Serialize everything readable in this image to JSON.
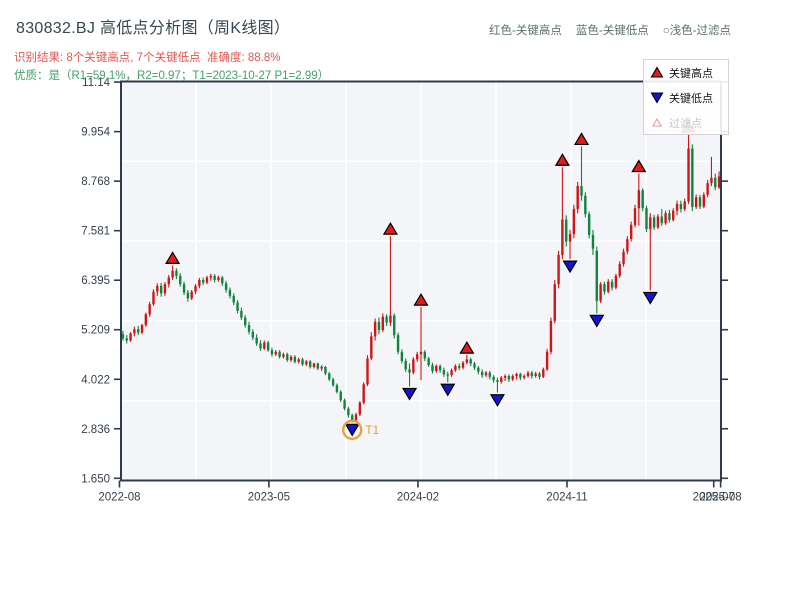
{
  "header": {
    "title": "830832.BJ 高低点分析图（周K线图）",
    "result_line": "识别结果: 8个关键高点, 7个关键低点  准确度: 88.8%",
    "quality_line": "优质：是（R1=59.1%，R2=0.97；T1=2023-10-27 P1=2.99）",
    "legend_top": {
      "high": "红色-关键高点",
      "low": "蓝色-关键低点",
      "filter": "○浅色-过滤点"
    }
  },
  "legend_box": {
    "items": [
      {
        "label": "关键高点",
        "marker": "red-up-triangle-icon"
      },
      {
        "label": "关键低点",
        "marker": "blue-down-triangle-icon"
      },
      {
        "label": "过滤点",
        "marker": "light-open-triangle-icon"
      }
    ]
  },
  "colors": {
    "candle_up": "#CE1616",
    "candle_down": "#12833D",
    "marker_high": "#E11A1A",
    "marker_low": "#1414CF",
    "marker_edge": "#000000",
    "annotation_orange": "#E8A23B",
    "plot_bg": "#F3F5F8",
    "grid": "#FFFFFF",
    "spine": "#2F3A4D",
    "tick_label": "#37404A",
    "filter_marker_edge": "#E89C9C"
  },
  "chart_data": {
    "type": "candlestick",
    "timeframe": "weekly",
    "title": "830832.BJ 高低点分析图（周K线图）",
    "ylim": [
      1.597,
      11.155
    ],
    "grid": "on",
    "y_ticks": [
      {
        "label": "11.14",
        "value": 11.141
      },
      {
        "label": "9.954",
        "value": 9.954
      },
      {
        "label": "8.768",
        "value": 8.768
      },
      {
        "label": "7.581",
        "value": 7.581
      },
      {
        "label": "6.395",
        "value": 6.395
      },
      {
        "label": "5.209",
        "value": 5.209
      },
      {
        "label": "4.022",
        "value": 4.022
      },
      {
        "label": "2.836",
        "value": 2.836
      },
      {
        "label": "1.650",
        "value": 1.65
      }
    ],
    "x_ticks": [
      {
        "label": "2022-08",
        "i": -0.9
      },
      {
        "label": "2023-05",
        "i": 38.2
      },
      {
        "label": "2024-02",
        "i": 77.2
      },
      {
        "label": "2024-11",
        "i": 116.2
      },
      {
        "label": "2025-07",
        "i": 154.6
      },
      {
        "label": "2025-08",
        "i": 156.4
      }
    ],
    "candles": [
      [
        5.1,
        5.18,
        4.95,
        5.0
      ],
      [
        5.0,
        5.08,
        4.88,
        4.95
      ],
      [
        4.95,
        5.15,
        4.92,
        5.12
      ],
      [
        5.12,
        5.28,
        5.05,
        5.22
      ],
      [
        5.22,
        5.3,
        5.08,
        5.14
      ],
      [
        5.14,
        5.35,
        5.1,
        5.32
      ],
      [
        5.32,
        5.62,
        5.28,
        5.58
      ],
      [
        5.58,
        5.88,
        5.52,
        5.82
      ],
      [
        5.82,
        6.18,
        5.78,
        6.12
      ],
      [
        6.12,
        6.32,
        6.02,
        6.26
      ],
      [
        6.26,
        6.33,
        6.0,
        6.08
      ],
      [
        6.08,
        6.35,
        6.02,
        6.3
      ],
      [
        6.3,
        6.52,
        6.22,
        6.46
      ],
      [
        6.46,
        6.75,
        6.4,
        6.62
      ],
      [
        6.62,
        6.68,
        6.42,
        6.5
      ],
      [
        6.5,
        6.56,
        6.24,
        6.3
      ],
      [
        6.3,
        6.36,
        6.04,
        6.1
      ],
      [
        6.1,
        6.16,
        5.88,
        5.96
      ],
      [
        5.96,
        6.16,
        5.92,
        6.12
      ],
      [
        6.12,
        6.3,
        6.06,
        6.26
      ],
      [
        6.26,
        6.45,
        6.2,
        6.4
      ],
      [
        6.4,
        6.46,
        6.28,
        6.34
      ],
      [
        6.34,
        6.5,
        6.3,
        6.46
      ],
      [
        6.46,
        6.55,
        6.38,
        6.5
      ],
      [
        6.5,
        6.54,
        6.34,
        6.4
      ],
      [
        6.4,
        6.5,
        6.36,
        6.46
      ],
      [
        6.46,
        6.5,
        6.26,
        6.32
      ],
      [
        6.32,
        6.38,
        6.1,
        6.16
      ],
      [
        6.16,
        6.22,
        5.96,
        6.02
      ],
      [
        6.02,
        6.08,
        5.8,
        5.86
      ],
      [
        5.86,
        5.92,
        5.6,
        5.66
      ],
      [
        5.66,
        5.74,
        5.44,
        5.5
      ],
      [
        5.5,
        5.56,
        5.26,
        5.32
      ],
      [
        5.32,
        5.4,
        5.1,
        5.16
      ],
      [
        5.16,
        5.22,
        4.96,
        5.02
      ],
      [
        5.02,
        5.1,
        4.82,
        4.88
      ],
      [
        4.88,
        4.96,
        4.7,
        4.76
      ],
      [
        4.76,
        4.95,
        4.72,
        4.9
      ],
      [
        4.9,
        4.94,
        4.68,
        4.72
      ],
      [
        4.72,
        4.78,
        4.56,
        4.62
      ],
      [
        4.62,
        4.72,
        4.58,
        4.68
      ],
      [
        4.68,
        4.72,
        4.52,
        4.56
      ],
      [
        4.56,
        4.66,
        4.52,
        4.62
      ],
      [
        4.62,
        4.66,
        4.44,
        4.48
      ],
      [
        4.48,
        4.6,
        4.44,
        4.56
      ],
      [
        4.56,
        4.6,
        4.4,
        4.44
      ],
      [
        4.44,
        4.54,
        4.4,
        4.5
      ],
      [
        4.5,
        4.54,
        4.34,
        4.38
      ],
      [
        4.38,
        4.48,
        4.34,
        4.45
      ],
      [
        4.45,
        4.48,
        4.28,
        4.32
      ],
      [
        4.32,
        4.42,
        4.28,
        4.4
      ],
      [
        4.4,
        4.42,
        4.24,
        4.28
      ],
      [
        4.28,
        4.36,
        4.22,
        4.32
      ],
      [
        4.32,
        4.34,
        4.12,
        4.16
      ],
      [
        4.16,
        4.2,
        3.98,
        4.02
      ],
      [
        4.02,
        4.06,
        3.84,
        3.88
      ],
      [
        3.88,
        3.92,
        3.68,
        3.72
      ],
      [
        3.72,
        3.76,
        3.48,
        3.52
      ],
      [
        3.52,
        3.56,
        3.28,
        3.32
      ],
      [
        3.32,
        3.36,
        3.1,
        3.16
      ],
      [
        3.16,
        3.2,
        2.99,
        3.04
      ],
      [
        3.04,
        3.22,
        3.0,
        3.18
      ],
      [
        3.18,
        3.5,
        3.14,
        3.46
      ],
      [
        3.46,
        3.95,
        3.42,
        3.9
      ],
      [
        3.9,
        4.6,
        3.86,
        4.52
      ],
      [
        4.52,
        5.15,
        4.48,
        5.05
      ],
      [
        5.05,
        5.48,
        4.95,
        5.4
      ],
      [
        5.4,
        5.5,
        5.1,
        5.2
      ],
      [
        5.2,
        5.6,
        5.15,
        5.52
      ],
      [
        5.52,
        5.58,
        5.3,
        5.38
      ],
      [
        5.38,
        7.45,
        5.3,
        5.55
      ],
      [
        5.55,
        5.6,
        5.0,
        5.08
      ],
      [
        5.08,
        5.14,
        4.62,
        4.68
      ],
      [
        4.68,
        4.74,
        4.4,
        4.46
      ],
      [
        4.46,
        4.52,
        4.2,
        4.26
      ],
      [
        4.26,
        4.4,
        3.85,
        4.18
      ],
      [
        4.18,
        4.55,
        4.14,
        4.5
      ],
      [
        4.5,
        4.68,
        4.44,
        4.62
      ],
      [
        4.62,
        5.75,
        4.0,
        4.68
      ],
      [
        4.68,
        4.72,
        4.46,
        4.52
      ],
      [
        4.52,
        4.56,
        4.32,
        4.36
      ],
      [
        4.36,
        4.42,
        4.16,
        4.22
      ],
      [
        4.22,
        4.38,
        4.18,
        4.34
      ],
      [
        4.34,
        4.38,
        4.18,
        4.24
      ],
      [
        4.24,
        4.3,
        4.08,
        4.14
      ],
      [
        4.14,
        4.2,
        3.95,
        4.12
      ],
      [
        4.12,
        4.28,
        4.08,
        4.24
      ],
      [
        4.24,
        4.38,
        4.2,
        4.34
      ],
      [
        4.34,
        4.4,
        4.24,
        4.3
      ],
      [
        4.3,
        4.46,
        4.26,
        4.42
      ],
      [
        4.42,
        4.6,
        4.38,
        4.5
      ],
      [
        4.5,
        4.54,
        4.34,
        4.4
      ],
      [
        4.4,
        4.44,
        4.24,
        4.3
      ],
      [
        4.3,
        4.34,
        4.14,
        4.2
      ],
      [
        4.2,
        4.26,
        4.06,
        4.12
      ],
      [
        4.12,
        4.22,
        4.08,
        4.18
      ],
      [
        4.18,
        4.22,
        4.02,
        4.08
      ],
      [
        4.08,
        4.12,
        3.94,
        4.0
      ],
      [
        4.0,
        4.06,
        3.7,
        3.96
      ],
      [
        3.96,
        4.1,
        3.92,
        4.06
      ],
      [
        4.06,
        4.14,
        3.98,
        4.1
      ],
      [
        4.1,
        4.14,
        3.96,
        4.02
      ],
      [
        4.02,
        4.14,
        3.98,
        4.1
      ],
      [
        4.1,
        4.18,
        4.02,
        4.15
      ],
      [
        4.15,
        4.18,
        4.0,
        4.06
      ],
      [
        4.06,
        4.14,
        4.02,
        4.1
      ],
      [
        4.1,
        4.22,
        4.06,
        4.18
      ],
      [
        4.18,
        4.22,
        4.04,
        4.1
      ],
      [
        4.1,
        4.2,
        4.06,
        4.16
      ],
      [
        4.16,
        4.2,
        4.02,
        4.08
      ],
      [
        4.08,
        4.3,
        4.05,
        4.26
      ],
      [
        4.26,
        4.75,
        4.22,
        4.68
      ],
      [
        4.68,
        5.5,
        4.62,
        5.42
      ],
      [
        5.42,
        6.4,
        5.36,
        6.3
      ],
      [
        6.3,
        7.1,
        6.2,
        7.0
      ],
      [
        7.0,
        9.1,
        6.9,
        7.85
      ],
      [
        7.85,
        7.95,
        7.2,
        7.32
      ],
      [
        7.32,
        7.6,
        6.9,
        7.5
      ],
      [
        7.5,
        8.2,
        7.4,
        8.1
      ],
      [
        8.1,
        8.75,
        8.0,
        8.65
      ],
      [
        8.65,
        9.6,
        8.3,
        8.42
      ],
      [
        8.42,
        8.5,
        7.9,
        7.98
      ],
      [
        7.98,
        8.04,
        7.4,
        7.48
      ],
      [
        7.48,
        7.6,
        7.0,
        7.15
      ],
      [
        7.1,
        7.2,
        5.6,
        5.9
      ],
      [
        5.9,
        6.35,
        5.85,
        6.3
      ],
      [
        6.3,
        6.36,
        6.05,
        6.12
      ],
      [
        6.12,
        6.42,
        6.08,
        6.36
      ],
      [
        6.36,
        6.42,
        6.15,
        6.22
      ],
      [
        6.22,
        6.55,
        6.18,
        6.5
      ],
      [
        6.5,
        6.85,
        6.45,
        6.78
      ],
      [
        6.78,
        7.15,
        6.72,
        7.08
      ],
      [
        7.08,
        7.45,
        7.02,
        7.38
      ],
      [
        7.38,
        7.8,
        7.32,
        7.72
      ],
      [
        7.72,
        8.2,
        7.66,
        8.12
      ],
      [
        8.12,
        8.95,
        7.7,
        8.55
      ],
      [
        8.55,
        8.6,
        8.05,
        8.12
      ],
      [
        8.12,
        8.18,
        7.55,
        7.62
      ],
      [
        7.62,
        8.0,
        6.15,
        7.9
      ],
      [
        7.9,
        7.96,
        7.6,
        7.66
      ],
      [
        7.66,
        7.98,
        7.62,
        7.92
      ],
      [
        7.92,
        8.1,
        7.7,
        7.76
      ],
      [
        7.76,
        8.06,
        7.72,
        8.0
      ],
      [
        8.0,
        8.08,
        7.78,
        7.84
      ],
      [
        7.84,
        8.12,
        7.8,
        8.06
      ],
      [
        8.06,
        8.3,
        7.95,
        8.22
      ],
      [
        8.22,
        8.3,
        8.02,
        8.1
      ],
      [
        8.1,
        8.35,
        8.05,
        8.28
      ],
      [
        8.28,
        9.9,
        8.22,
        9.55
      ],
      [
        9.55,
        9.65,
        8.05,
        8.15
      ],
      [
        8.15,
        8.45,
        8.1,
        8.38
      ],
      [
        8.38,
        8.44,
        8.1,
        8.16
      ],
      [
        8.16,
        8.5,
        8.12,
        8.44
      ],
      [
        8.44,
        8.8,
        8.38,
        8.72
      ],
      [
        8.72,
        9.35,
        8.65,
        8.85
      ],
      [
        8.85,
        8.95,
        8.55,
        8.62
      ],
      [
        8.62,
        9.0,
        8.58,
        8.88
      ]
    ],
    "key_highs": [
      {
        "i": 13,
        "price": 6.75
      },
      {
        "i": 70,
        "price": 7.45
      },
      {
        "i": 78,
        "price": 5.75
      },
      {
        "i": 90,
        "price": 4.6
      },
      {
        "i": 115,
        "price": 9.1
      },
      {
        "i": 120,
        "price": 9.6
      },
      {
        "i": 135,
        "price": 8.95
      },
      {
        "i": 148,
        "price": 9.9
      }
    ],
    "key_lows": [
      {
        "i": 60,
        "price": 2.99
      },
      {
        "i": 75,
        "price": 3.85
      },
      {
        "i": 85,
        "price": 3.95
      },
      {
        "i": 98,
        "price": 3.7
      },
      {
        "i": 117,
        "price": 6.9
      },
      {
        "i": 124,
        "price": 5.6
      },
      {
        "i": 138,
        "price": 6.15
      }
    ],
    "annotation": {
      "label": "T1",
      "i": 60,
      "price": 2.99
    }
  }
}
